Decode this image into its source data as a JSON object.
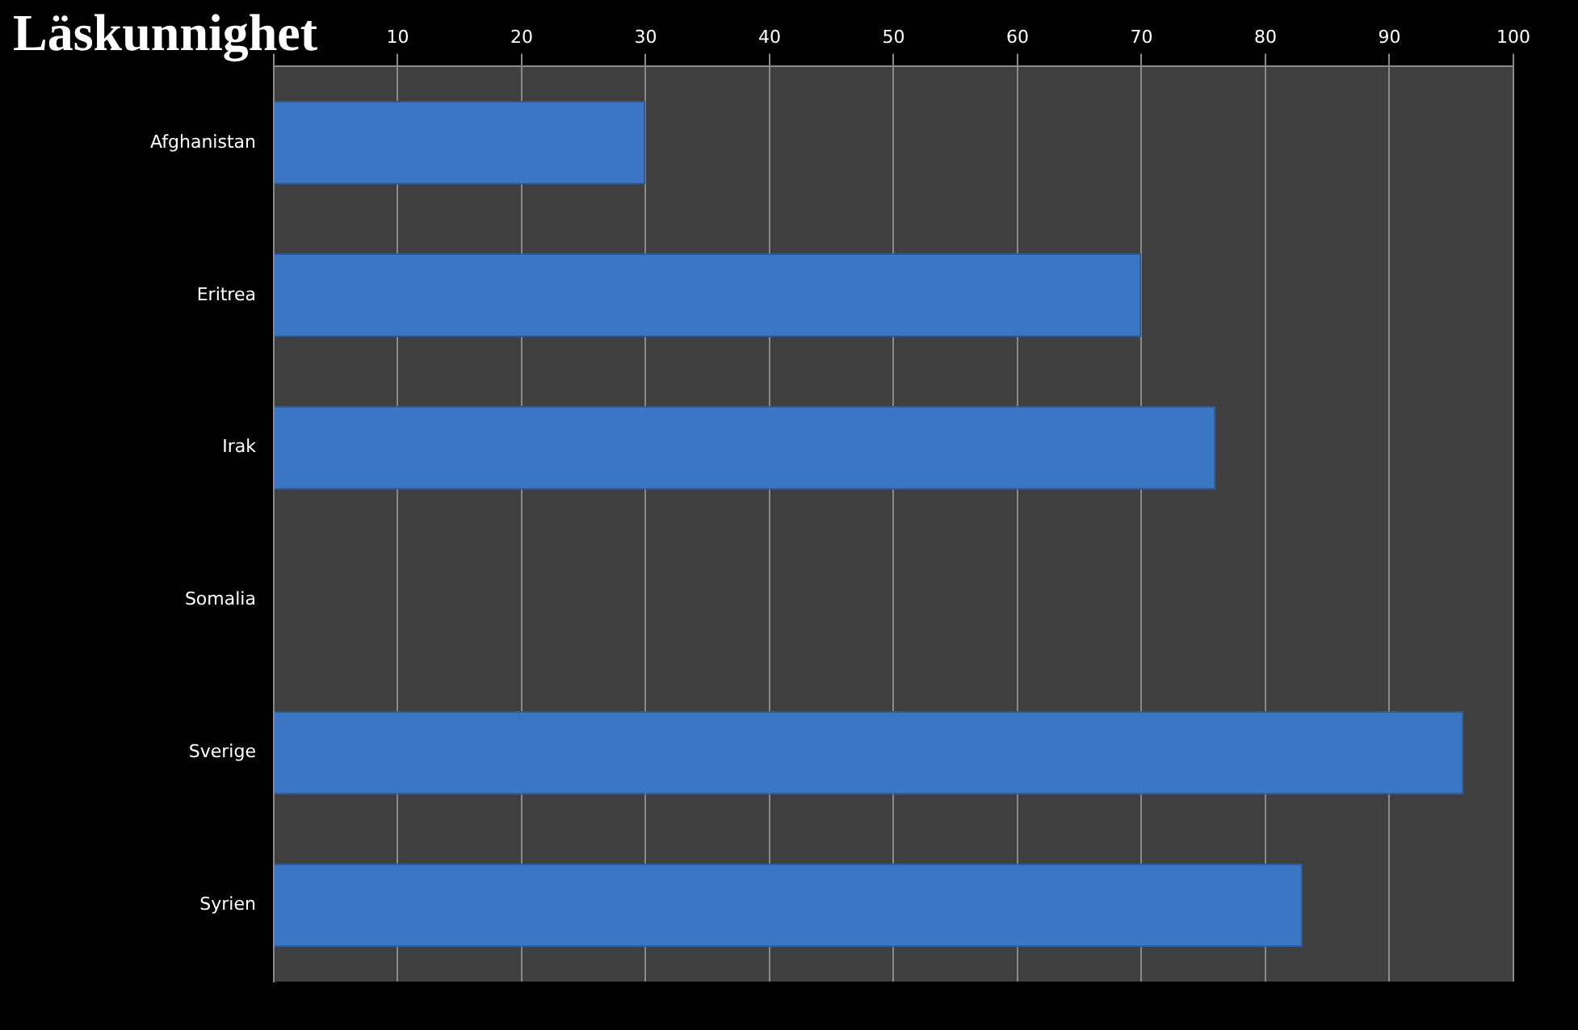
{
  "chart_data": {
    "type": "bar",
    "orientation": "horizontal",
    "title": "Läskunnighet",
    "categories": [
      "Afghanistan",
      "Eritrea",
      "Irak",
      "Somalia",
      "Sverige",
      "Syrien"
    ],
    "values": [
      30,
      70,
      76,
      null,
      96,
      83
    ],
    "color": "#3a76c4",
    "xlim": [
      0,
      100
    ],
    "xticks": [
      {
        "value": 0,
        "label": null
      },
      10,
      20,
      30,
      40,
      50,
      60,
      70,
      80,
      90,
      100
    ],
    "grid": "x",
    "legend": false
  }
}
